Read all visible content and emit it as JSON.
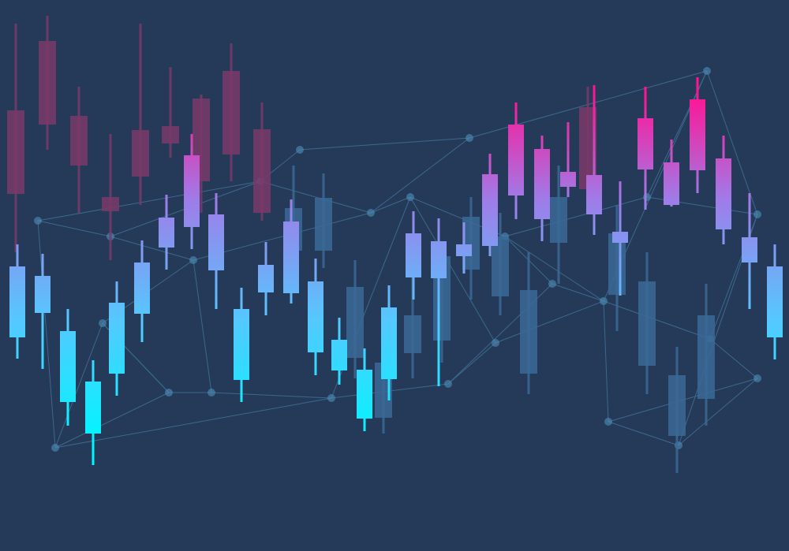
{
  "scene": {
    "background": "#253a59",
    "gradient_stops": [
      "#00f6ff",
      "#55c8ff",
      "#a07be8",
      "#ff1493"
    ],
    "back_candle_color": "#3a6a96",
    "faded_pink_color": "#7a3a6a",
    "network_line_color": "#4e8fb8"
  },
  "front_candles": [
    {
      "wick": [
        310,
        455
      ],
      "body": [
        338,
        428
      ]
    },
    {
      "wick": [
        322,
        468
      ],
      "body": [
        350,
        397
      ]
    },
    {
      "wick": [
        392,
        540
      ],
      "body": [
        420,
        510
      ]
    },
    {
      "wick": [
        457,
        590
      ],
      "body": [
        484,
        550
      ]
    },
    {
      "wick": [
        357,
        502
      ],
      "body": [
        384,
        474
      ]
    },
    {
      "wick": [
        305,
        434
      ],
      "body": [
        333,
        398
      ]
    },
    {
      "wick": [
        247,
        342
      ],
      "body": [
        276,
        314
      ]
    },
    {
      "wick": [
        170,
        316
      ],
      "body": [
        197,
        288
      ]
    },
    {
      "wick": [
        245,
        392
      ],
      "body": [
        272,
        343
      ]
    },
    {
      "wick": [
        365,
        510
      ],
      "body": [
        392,
        482
      ]
    },
    {
      "wick": [
        307,
        400
      ],
      "body": [
        336,
        371
      ]
    },
    {
      "wick": [
        253,
        385
      ],
      "body": [
        281,
        372
      ]
    },
    {
      "wick": [
        328,
        476
      ],
      "body": [
        357,
        447
      ]
    },
    {
      "wick": [
        403,
        488
      ],
      "body": [
        431,
        470
      ]
    },
    {
      "wick": [
        442,
        547
      ],
      "body": [
        469,
        531
      ]
    },
    {
      "wick": [
        362,
        508
      ],
      "body": [
        390,
        481
      ]
    },
    {
      "wick": [
        268,
        380
      ],
      "body": [
        296,
        352
      ]
    },
    {
      "wick": [
        277,
        490
      ],
      "body": [
        306,
        353
      ]
    },
    {
      "wick": [
        282,
        347
      ],
      "body": [
        310,
        325
      ]
    },
    {
      "wick": [
        195,
        325
      ],
      "body": [
        221,
        312
      ]
    },
    {
      "wick": [
        130,
        278
      ],
      "body": [
        158,
        248
      ]
    },
    {
      "wick": [
        172,
        306
      ],
      "body": [
        189,
        278
      ]
    },
    {
      "wick": [
        155,
        250
      ],
      "body": [
        218,
        237
      ]
    },
    {
      "wick": [
        108,
        298
      ],
      "body": [
        222,
        272
      ]
    },
    {
      "wick": [
        230,
        375
      ],
      "body": [
        294,
        308
      ]
    },
    {
      "wick": [
        110,
        266
      ],
      "body": [
        150,
        215
      ]
    },
    {
      "wick": [
        177,
        262
      ],
      "body": [
        206,
        260
      ]
    },
    {
      "wick": [
        98,
        245
      ],
      "body": [
        126,
        216
      ]
    },
    {
      "wick": [
        172,
        310
      ],
      "body": [
        201,
        291
      ]
    },
    {
      "wick": [
        245,
        392
      ],
      "body": [
        301,
        333
      ]
    },
    {
      "wick": [
        310,
        456
      ],
      "body": [
        338,
        428
      ]
    }
  ],
  "back_candles": [
    {
      "wick": [
        30,
        320
      ],
      "body": [
        140,
        246
      ]
    },
    {
      "wick": [
        20,
        190
      ],
      "body": [
        52,
        158
      ]
    },
    {
      "wick": [
        110,
        270
      ],
      "body": [
        147,
        210
      ]
    },
    {
      "wick": [
        170,
        330
      ],
      "body": [
        250,
        268
      ]
    },
    {
      "wick": [
        30,
        260
      ],
      "body": [
        165,
        224
      ]
    },
    {
      "wick": [
        85,
        200
      ],
      "body": [
        160,
        182
      ]
    },
    {
      "wick": [
        120,
        270
      ],
      "body": [
        125,
        230
      ]
    },
    {
      "wick": [
        55,
        230
      ],
      "body": [
        90,
        196
      ]
    },
    {
      "wick": [
        130,
        280
      ],
      "body": [
        164,
        270
      ]
    },
    {
      "wick": [
        210,
        330
      ],
      "body": [
        264,
        318
      ]
    },
    {
      "wick": [
        220,
        340
      ],
      "body": [
        251,
        318
      ]
    },
    {
      "wick": [
        330,
        480
      ],
      "body": [
        364,
        454
      ]
    },
    {
      "wick": [
        425,
        550
      ],
      "body": [
        460,
        530
      ]
    },
    {
      "wick": [
        300,
        480
      ],
      "body": [
        400,
        448
      ]
    },
    {
      "wick": [
        310,
        460
      ],
      "body": [
        325,
        432
      ]
    },
    {
      "wick": [
        250,
        380
      ],
      "body": [
        275,
        342
      ]
    },
    {
      "wick": [
        270,
        400
      ],
      "body": [
        300,
        376
      ]
    },
    {
      "wick": [
        320,
        500
      ],
      "body": [
        368,
        474
      ]
    },
    {
      "wick": [
        210,
        360
      ],
      "body": [
        250,
        308
      ]
    },
    {
      "wick": [
        110,
        260
      ],
      "body": [
        136,
        240
      ]
    },
    {
      "wick": [
        260,
        420
      ],
      "body": [
        296,
        374
      ]
    },
    {
      "wick": [
        320,
        500
      ],
      "body": [
        357,
        464
      ]
    },
    {
      "wick": [
        440,
        600
      ],
      "body": [
        476,
        553
      ]
    },
    {
      "wick": [
        360,
        540
      ],
      "body": [
        400,
        506
      ]
    }
  ]
}
